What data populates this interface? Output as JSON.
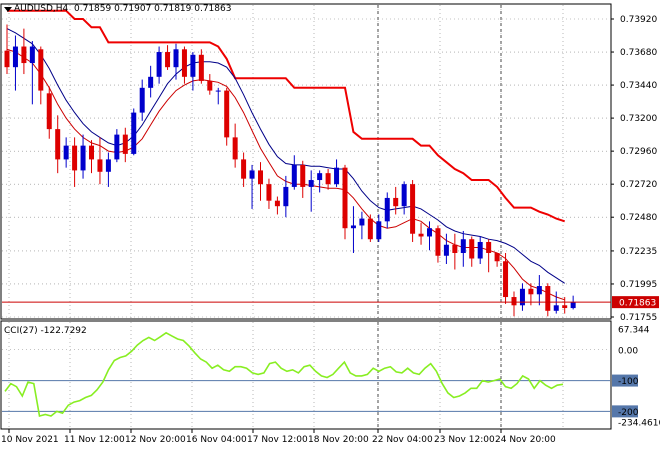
{
  "header": {
    "symbol": "AUDUSD,H4",
    "ohlc": "0.71859 0.71907 0.71819 0.71863"
  },
  "price_axis": {
    "ticks": [
      "0.73920",
      "0.73680",
      "0.73440",
      "0.73200",
      "0.72960",
      "0.72720",
      "0.72480",
      "0.72235",
      "0.71995",
      "0.71755"
    ],
    "current_price": "0.71863"
  },
  "cci": {
    "label": "CCI(27) -122.7292",
    "ticks": [
      "67.344",
      "0.00",
      "-100",
      "-200",
      "-234.4616"
    ]
  },
  "time_axis": {
    "ticks": [
      "10 Nov 2021",
      "11 Nov 12:00",
      "12 Nov 20:00",
      "16 Nov 04:00",
      "17 Nov 12:00",
      "18 Nov 20:00",
      "22 Nov 04:00",
      "23 Nov 12:00",
      "24 Nov 20:00"
    ]
  },
  "colors": {
    "bull": "#0000cc",
    "bear": "#dd0000",
    "upper_band": "#ee0000",
    "ma_blue": "#000088",
    "ma_red": "#cc0000",
    "cci_line": "#88ee22",
    "current_line": "#cc0000",
    "level_line": "#5577aa",
    "grid": "#888888"
  },
  "chart_data": {
    "type": "candlestick",
    "price_range": [
      0.717,
      0.7405
    ],
    "candles": [
      [
        0.7369,
        0.7388,
        0.7352,
        0.7357
      ],
      [
        0.7357,
        0.738,
        0.734,
        0.7372
      ],
      [
        0.7372,
        0.7385,
        0.7352,
        0.736
      ],
      [
        0.736,
        0.7376,
        0.733,
        0.7372
      ],
      [
        0.737,
        0.7372,
        0.733,
        0.734
      ],
      [
        0.7338,
        0.7343,
        0.7305,
        0.7312
      ],
      [
        0.7312,
        0.7322,
        0.728,
        0.729
      ],
      [
        0.729,
        0.7306,
        0.7284,
        0.73
      ],
      [
        0.73,
        0.7306,
        0.727,
        0.7282
      ],
      [
        0.7282,
        0.7308,
        0.7276,
        0.73
      ],
      [
        0.73,
        0.7304,
        0.728,
        0.729
      ],
      [
        0.729,
        0.7306,
        0.7272,
        0.7281
      ],
      [
        0.7281,
        0.7295,
        0.727,
        0.729
      ],
      [
        0.729,
        0.7312,
        0.7288,
        0.7308
      ],
      [
        0.7308,
        0.7313,
        0.7288,
        0.7294
      ],
      [
        0.7294,
        0.7327,
        0.7293,
        0.7324
      ],
      [
        0.7324,
        0.7348,
        0.7318,
        0.7342
      ],
      [
        0.7342,
        0.7358,
        0.7335,
        0.735
      ],
      [
        0.735,
        0.7372,
        0.7345,
        0.7368
      ],
      [
        0.7368,
        0.7373,
        0.7355,
        0.7357
      ],
      [
        0.7357,
        0.7374,
        0.7348,
        0.737
      ],
      [
        0.737,
        0.7372,
        0.7345,
        0.735
      ],
      [
        0.735,
        0.7368,
        0.734,
        0.7366
      ],
      [
        0.7366,
        0.737,
        0.7345,
        0.7347
      ],
      [
        0.7347,
        0.7352,
        0.7337,
        0.734
      ],
      [
        0.734,
        0.7342,
        0.733,
        0.734
      ],
      [
        0.734,
        0.7342,
        0.73,
        0.7306
      ],
      [
        0.7306,
        0.7316,
        0.7284,
        0.729
      ],
      [
        0.729,
        0.7295,
        0.727,
        0.7276
      ],
      [
        0.7276,
        0.7286,
        0.7254,
        0.7282
      ],
      [
        0.7282,
        0.7288,
        0.726,
        0.7272
      ],
      [
        0.7272,
        0.7276,
        0.7254,
        0.726
      ],
      [
        0.726,
        0.7263,
        0.725,
        0.7256
      ],
      [
        0.7256,
        0.7278,
        0.7248,
        0.727
      ],
      [
        0.727,
        0.7293,
        0.7268,
        0.7286
      ],
      [
        0.7286,
        0.7289,
        0.7262,
        0.727
      ],
      [
        0.727,
        0.7282,
        0.7252,
        0.7275
      ],
      [
        0.7275,
        0.7282,
        0.7266,
        0.728
      ],
      [
        0.728,
        0.7283,
        0.7268,
        0.7272
      ],
      [
        0.7272,
        0.729,
        0.727,
        0.7284
      ],
      [
        0.7284,
        0.7286,
        0.7232,
        0.724
      ],
      [
        0.724,
        0.7256,
        0.7222,
        0.7242
      ],
      [
        0.7242,
        0.7252,
        0.7232,
        0.7247
      ],
      [
        0.7247,
        0.725,
        0.723,
        0.7232
      ],
      [
        0.7232,
        0.725,
        0.723,
        0.7245
      ],
      [
        0.7245,
        0.7266,
        0.724,
        0.7262
      ],
      [
        0.7262,
        0.727,
        0.725,
        0.7256
      ],
      [
        0.7256,
        0.7274,
        0.725,
        0.7272
      ],
      [
        0.7272,
        0.7275,
        0.723,
        0.7236
      ],
      [
        0.7236,
        0.7244,
        0.7228,
        0.7234
      ],
      [
        0.7234,
        0.7245,
        0.7224,
        0.724
      ],
      [
        0.724,
        0.7242,
        0.7215,
        0.722
      ],
      [
        0.722,
        0.7236,
        0.7214,
        0.7228
      ],
      [
        0.7228,
        0.7236,
        0.721,
        0.7222
      ],
      [
        0.7222,
        0.7238,
        0.7212,
        0.7232
      ],
      [
        0.7232,
        0.7234,
        0.7212,
        0.7218
      ],
      [
        0.7218,
        0.7234,
        0.7214,
        0.723
      ],
      [
        0.723,
        0.7232,
        0.7208,
        0.7222
      ],
      [
        0.7222,
        0.722,
        0.7212,
        0.7216
      ],
      [
        0.7216,
        0.7222,
        0.7185,
        0.719
      ],
      [
        0.719,
        0.7194,
        0.7176,
        0.7184
      ],
      [
        0.7184,
        0.72,
        0.718,
        0.7196
      ],
      [
        0.7196,
        0.72,
        0.7184,
        0.7192
      ],
      [
        0.7192,
        0.7206,
        0.7184,
        0.7198
      ],
      [
        0.7198,
        0.72,
        0.7176,
        0.718
      ],
      [
        0.718,
        0.7194,
        0.7178,
        0.7184
      ],
      [
        0.7184,
        0.719,
        0.7178,
        0.7182
      ],
      [
        0.7182,
        0.7191,
        0.7181,
        0.7186
      ]
    ],
    "upper_band": [
      0.7398,
      0.7398,
      0.7398,
      0.7398,
      0.7398,
      0.7398,
      0.7398,
      0.7398,
      0.7392,
      0.7392,
      0.7386,
      0.7386,
      0.7375,
      0.7375,
      0.7375,
      0.7375,
      0.7375,
      0.7375,
      0.7375,
      0.7375,
      0.7375,
      0.7375,
      0.7375,
      0.7375,
      0.7375,
      0.7372,
      0.7363,
      0.7349,
      0.7349,
      0.7349,
      0.7349,
      0.7349,
      0.7349,
      0.7349,
      0.7342,
      0.7342,
      0.7342,
      0.7342,
      0.7342,
      0.7342,
      0.7342,
      0.731,
      0.7305,
      0.7305,
      0.7305,
      0.7305,
      0.7305,
      0.7305,
      0.7305,
      0.73,
      0.73,
      0.7293,
      0.7288,
      0.7283,
      0.728,
      0.7275,
      0.7275,
      0.7275,
      0.727,
      0.7262,
      0.7255,
      0.7255,
      0.7255,
      0.7252,
      0.725,
      0.7247,
      0.7245
    ],
    "ma_blue": [
      0.7385,
      0.7382,
      0.7378,
      0.7374,
      0.7366,
      0.7356,
      0.7344,
      0.7333,
      0.7324,
      0.7316,
      0.731,
      0.7306,
      0.7302,
      0.73,
      0.7302,
      0.7307,
      0.7315,
      0.7325,
      0.7335,
      0.7345,
      0.7352,
      0.7357,
      0.736,
      0.7361,
      0.7361,
      0.736,
      0.7357,
      0.7349,
      0.7337,
      0.7324,
      0.7312,
      0.7301,
      0.7292,
      0.7287,
      0.7286,
      0.7286,
      0.7285,
      0.7285,
      0.7284,
      0.7283,
      0.7283,
      0.7276,
      0.7267,
      0.726,
      0.7255,
      0.7253,
      0.7254,
      0.7255,
      0.7256,
      0.7254,
      0.725,
      0.7246,
      0.7241,
      0.7238,
      0.7236,
      0.7235,
      0.7234,
      0.7232,
      0.7231,
      0.7229,
      0.7226,
      0.7221,
      0.7216,
      0.7213,
      0.7208,
      0.7204,
      0.72
    ],
    "ma_red": [
      0.737,
      0.7368,
      0.7364,
      0.736,
      0.7352,
      0.7342,
      0.733,
      0.732,
      0.7312,
      0.7306,
      0.7302,
      0.73,
      0.7296,
      0.7295,
      0.7296,
      0.7299,
      0.7305,
      0.7315,
      0.7325,
      0.7333,
      0.734,
      0.7344,
      0.7347,
      0.7348,
      0.7347,
      0.7346,
      0.7343,
      0.7335,
      0.7324,
      0.7311,
      0.7298,
      0.7288,
      0.7278,
      0.7274,
      0.7272,
      0.7272,
      0.7271,
      0.727,
      0.7269,
      0.7269,
      0.7268,
      0.7262,
      0.7254,
      0.7247,
      0.7242,
      0.724,
      0.7241,
      0.7244,
      0.7247,
      0.7245,
      0.724,
      0.7236,
      0.7231,
      0.7228,
      0.7226,
      0.7226,
      0.7226,
      0.7224,
      0.7222,
      0.7218,
      0.7211,
      0.7203,
      0.7198,
      0.7196,
      0.7193,
      0.719,
      0.7188
    ],
    "current_price": 0.71863,
    "cci_range": [
      -234.4616,
      67.344
    ],
    "cci_levels": [
      -100,
      -200
    ],
    "cci": [
      -135,
      -110,
      -120,
      -150,
      -105,
      -110,
      -215,
      -210,
      -215,
      -200,
      -206,
      -180,
      -170,
      -165,
      -155,
      -148,
      -130,
      -105,
      -65,
      -35,
      -25,
      -20,
      -5,
      15,
      30,
      40,
      30,
      42,
      55,
      45,
      35,
      30,
      12,
      -10,
      -30,
      -40,
      -60,
      -50,
      -65,
      -70,
      -55,
      -55,
      -60,
      -75,
      -80,
      -75,
      -45,
      -40,
      -60,
      -70,
      -65,
      -75,
      -55,
      -50,
      -70,
      -85,
      -90,
      -80,
      -60,
      -40,
      -75,
      -85,
      -85,
      -80,
      -60,
      -70,
      -60,
      -55,
      -72,
      -75,
      -60,
      -75,
      -80,
      -60,
      -45,
      -70,
      -110,
      -140,
      -155,
      -150,
      -140,
      -125,
      -125,
      -100,
      -105,
      -100,
      -95,
      -120,
      -125,
      -110,
      -85,
      -95,
      -125,
      -100,
      -115,
      -125,
      -115,
      -112
    ]
  }
}
